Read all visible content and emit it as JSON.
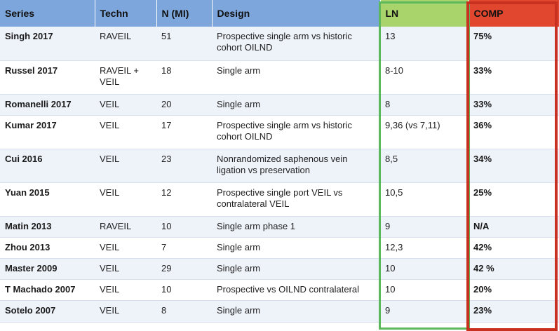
{
  "headers": {
    "series": "Series",
    "techn": "Techn",
    "n": "N (MI)",
    "design": "Design",
    "ln": "LN",
    "comp": "COMP"
  },
  "rows": [
    {
      "series": "Singh 2017",
      "techn": "RAVEIL",
      "n": "51",
      "design": "Prospective single arm vs historic cohort OILND",
      "ln": "13",
      "comp": "75%"
    },
    {
      "series": "Russel 2017",
      "techn": "RAVEIL + VEIL",
      "n": "18",
      "design": "Single arm",
      "ln": "8-10",
      "comp": "33%"
    },
    {
      "series": "Romanelli 2017",
      "techn": "VEIL",
      "n": "20",
      "design": "Single arm",
      "ln": "8",
      "comp": "33%"
    },
    {
      "series": "Kumar 2017",
      "techn": "VEIL",
      "n": "17",
      "design": "Prospective single arm vs historic cohort OILND",
      "ln": "9,36 (vs 7,11)",
      "comp": "36%"
    },
    {
      "series": "Cui 2016",
      "techn": "VEIL",
      "n": "23",
      "design": "Nonrandomized saphenous vein ligation vs preservation",
      "ln": "8,5",
      "comp": "34%"
    },
    {
      "series": "Yuan 2015",
      "techn": "VEIL",
      "n": "12",
      "design": "Prospective single port VEIL vs contralateral VEIL",
      "ln": "10,5",
      "comp": "25%"
    },
    {
      "series": "Matin 2013",
      "techn": "RAVEIL",
      "n": "10",
      "design": "Single arm phase 1",
      "ln": "9",
      "comp": "N/A"
    },
    {
      "series": "Zhou 2013",
      "techn": "VEIL",
      "n": "7",
      "design": "Single arm",
      "ln": "12,3",
      "comp": "42%"
    },
    {
      "series": "Master 2009",
      "techn": "VEIL",
      "n": "29",
      "design": "Single arm",
      "ln": "10",
      "comp": "42 %"
    },
    {
      "series": "T Machado 2007",
      "techn": "VEIL",
      "n": "10",
      "design": "Prospective vs OILND contralateral",
      "ln": "10",
      "comp": "20%"
    },
    {
      "series": "Sotelo 2007",
      "techn": "VEIL",
      "n": "8",
      "design": "Single arm",
      "ln": "9",
      "comp": "23%"
    }
  ],
  "colors": {
    "header_blue": "#7da7dc",
    "ln_header": "#a9d46c",
    "comp_header": "#e0472e",
    "ln_frame": "#5cb85c",
    "comp_frame": "#c8301f"
  }
}
